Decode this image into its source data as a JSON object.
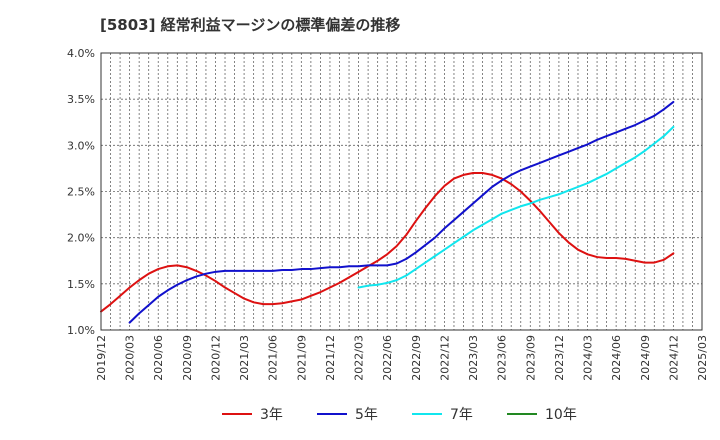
{
  "chart_data": {
    "type": "line",
    "title": "[5803]  経常利益マージンの標準偏差の推移",
    "xlabel": "",
    "ylabel": "",
    "ylim": [
      0.01,
      0.04
    ],
    "y_ticks": [
      0.01,
      0.015,
      0.02,
      0.025,
      0.03,
      0.035,
      0.04
    ],
    "y_tick_labels": [
      "1.0%",
      "1.5%",
      "2.0%",
      "2.5%",
      "3.0%",
      "3.5%",
      "4.0%"
    ],
    "x_ticks": [
      "2019/12",
      "2020/03",
      "2020/06",
      "2020/09",
      "2020/12",
      "2021/03",
      "2021/06",
      "2021/09",
      "2021/12",
      "2022/03",
      "2022/06",
      "2022/09",
      "2022/12",
      "2023/03",
      "2023/06",
      "2023/09",
      "2023/12",
      "2024/03",
      "2024/06",
      "2024/09",
      "2024/12",
      "2025/03"
    ],
    "grid": true,
    "legend_position": "bottom",
    "series": [
      {
        "name": "3年",
        "color": "#dd1111",
        "x": [
          "2019/12",
          "2020/01",
          "2020/02",
          "2020/03",
          "2020/04",
          "2020/05",
          "2020/06",
          "2020/07",
          "2020/08",
          "2020/09",
          "2020/10",
          "2020/11",
          "2020/12",
          "2021/01",
          "2021/02",
          "2021/03",
          "2021/04",
          "2021/05",
          "2021/06",
          "2021/07",
          "2021/08",
          "2021/09",
          "2021/10",
          "2021/11",
          "2021/12",
          "2022/01",
          "2022/02",
          "2022/03",
          "2022/04",
          "2022/05",
          "2022/06",
          "2022/07",
          "2022/08",
          "2022/09",
          "2022/10",
          "2022/11",
          "2022/12",
          "2023/01",
          "2023/02",
          "2023/03",
          "2023/04",
          "2023/05",
          "2023/06",
          "2023/07",
          "2023/08",
          "2023/09",
          "2023/10",
          "2023/11",
          "2023/12",
          "2024/01",
          "2024/02",
          "2024/03",
          "2024/04",
          "2024/05",
          "2024/06",
          "2024/07",
          "2024/08",
          "2024/09",
          "2024/10",
          "2024/11",
          "2024/12"
        ],
        "values": [
          0.012,
          0.0128,
          0.0137,
          0.0146,
          0.0154,
          0.0161,
          0.0166,
          0.0169,
          0.017,
          0.0168,
          0.0164,
          0.0159,
          0.0153,
          0.0146,
          0.014,
          0.0134,
          0.013,
          0.0128,
          0.0128,
          0.0129,
          0.0131,
          0.0133,
          0.0137,
          0.0141,
          0.0146,
          0.0151,
          0.0157,
          0.0163,
          0.0169,
          0.0175,
          0.0182,
          0.0191,
          0.0203,
          0.0218,
          0.0232,
          0.0245,
          0.0256,
          0.0264,
          0.0268,
          0.027,
          0.027,
          0.0268,
          0.0264,
          0.0258,
          0.025,
          0.024,
          0.0229,
          0.0217,
          0.0205,
          0.0195,
          0.0187,
          0.0182,
          0.0179,
          0.0178,
          0.0178,
          0.0177,
          0.0175,
          0.0173,
          0.0173,
          0.0176,
          0.0183
        ]
      },
      {
        "name": "5年",
        "color": "#1111cc",
        "x": [
          "2020/03",
          "2020/04",
          "2020/05",
          "2020/06",
          "2020/07",
          "2020/08",
          "2020/09",
          "2020/10",
          "2020/11",
          "2020/12",
          "2021/01",
          "2021/02",
          "2021/03",
          "2021/04",
          "2021/05",
          "2021/06",
          "2021/07",
          "2021/08",
          "2021/09",
          "2021/10",
          "2021/11",
          "2021/12",
          "2022/01",
          "2022/02",
          "2022/03",
          "2022/04",
          "2022/05",
          "2022/06",
          "2022/07",
          "2022/08",
          "2022/09",
          "2022/10",
          "2022/11",
          "2022/12",
          "2023/01",
          "2023/02",
          "2023/03",
          "2023/04",
          "2023/05",
          "2023/06",
          "2023/07",
          "2023/08",
          "2023/09",
          "2023/10",
          "2023/11",
          "2023/12",
          "2024/01",
          "2024/02",
          "2024/03",
          "2024/04",
          "2024/05",
          "2024/06",
          "2024/07",
          "2024/08",
          "2024/09",
          "2024/10",
          "2024/11",
          "2024/12"
        ],
        "values": [
          0.0108,
          0.0118,
          0.0127,
          0.0136,
          0.0143,
          0.0149,
          0.0154,
          0.0158,
          0.0161,
          0.0163,
          0.0164,
          0.0164,
          0.0164,
          0.0164,
          0.0164,
          0.0164,
          0.0165,
          0.0165,
          0.0166,
          0.0166,
          0.0167,
          0.0168,
          0.0168,
          0.0169,
          0.0169,
          0.017,
          0.017,
          0.017,
          0.0172,
          0.0177,
          0.0184,
          0.0192,
          0.02,
          0.021,
          0.0219,
          0.0228,
          0.0237,
          0.0246,
          0.0255,
          0.0262,
          0.0268,
          0.0273,
          0.0277,
          0.0281,
          0.0285,
          0.0289,
          0.0293,
          0.0297,
          0.0301,
          0.0306,
          0.031,
          0.0314,
          0.0318,
          0.0322,
          0.0327,
          0.0332,
          0.0339,
          0.0347
        ]
      },
      {
        "name": "7年",
        "color": "#11e6ee",
        "x": [
          "2022/03",
          "2022/04",
          "2022/05",
          "2022/06",
          "2022/07",
          "2022/08",
          "2022/09",
          "2022/10",
          "2022/11",
          "2022/12",
          "2023/01",
          "2023/02",
          "2023/03",
          "2023/04",
          "2023/05",
          "2023/06",
          "2023/07",
          "2023/08",
          "2023/09",
          "2023/10",
          "2023/11",
          "2023/12",
          "2024/01",
          "2024/02",
          "2024/03",
          "2024/04",
          "2024/05",
          "2024/06",
          "2024/07",
          "2024/08",
          "2024/09",
          "2024/10",
          "2024/11",
          "2024/12"
        ],
        "values": [
          0.0146,
          0.0148,
          0.0149,
          0.0151,
          0.0154,
          0.0159,
          0.0166,
          0.0173,
          0.018,
          0.0187,
          0.0194,
          0.0201,
          0.0208,
          0.0214,
          0.022,
          0.0226,
          0.023,
          0.0234,
          0.0237,
          0.0241,
          0.0244,
          0.0247,
          0.0251,
          0.0255,
          0.0259,
          0.0264,
          0.0269,
          0.0275,
          0.0281,
          0.0287,
          0.0294,
          0.0302,
          0.031,
          0.032
        ]
      },
      {
        "name": "10年",
        "color": "#228822",
        "x": [],
        "values": []
      }
    ]
  }
}
